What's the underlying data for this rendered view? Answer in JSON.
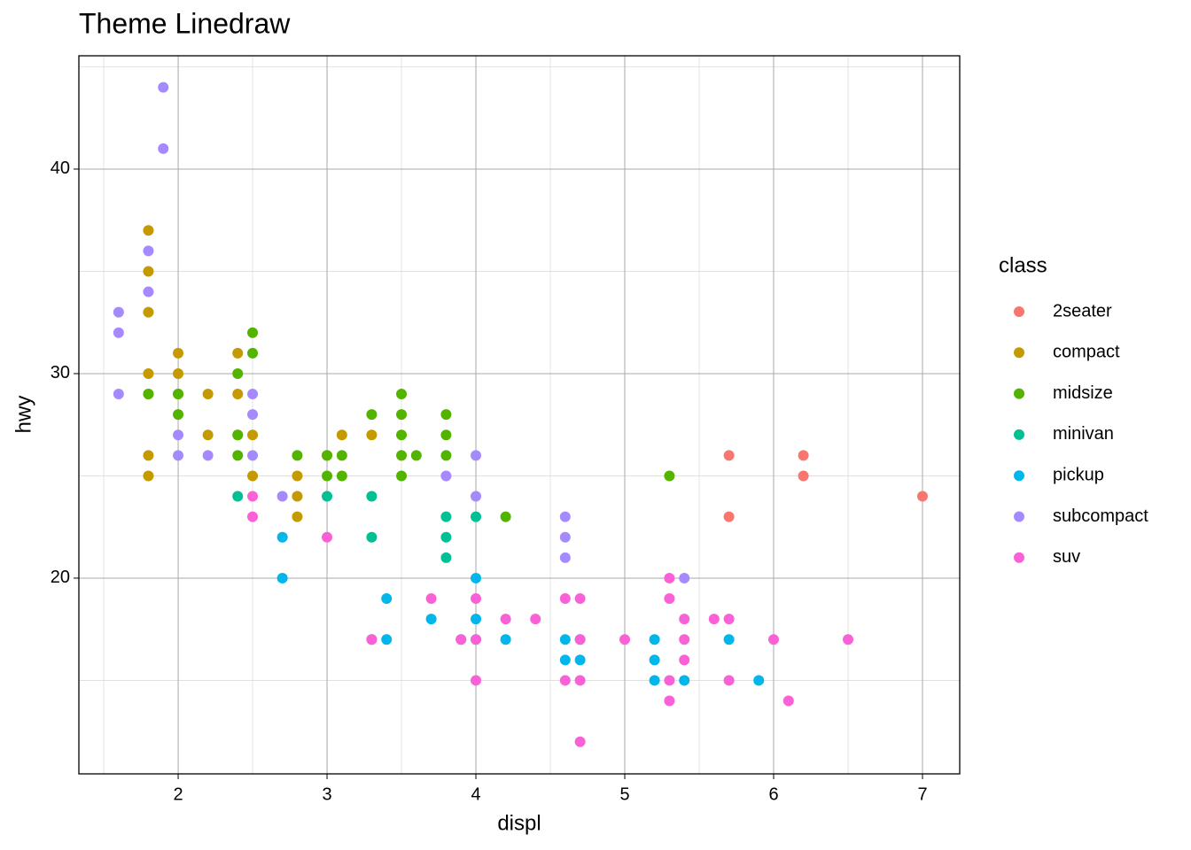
{
  "chart_data": {
    "type": "scatter",
    "title": "Theme Linedraw",
    "x_label": "displ",
    "y_label": "hwy",
    "legend_title": "class",
    "xlim": [
      1.333,
      7.25
    ],
    "ylim": [
      10.43,
      45.54
    ],
    "xticks": [
      2,
      3,
      4,
      5,
      6,
      7
    ],
    "yticks": [
      20,
      30,
      40
    ],
    "x_minor_ticks": [
      1.5,
      2.5,
      3.5,
      4.5,
      5.5,
      6.5
    ],
    "y_minor_ticks": [
      15,
      25,
      35,
      45
    ],
    "grid": true,
    "series": [
      {
        "name": "2seater",
        "color": "#F8766D",
        "x": [
          5.7,
          5.7,
          6.2,
          6.2,
          7.0
        ],
        "values": [
          26,
          23,
          26,
          25,
          24
        ]
      },
      {
        "name": "compact",
        "color": "#C49A00",
        "x": [
          1.8,
          1.8,
          1.8,
          1.8,
          1.8,
          1.8,
          1.8,
          2.0,
          2.0,
          2.0,
          2.2,
          2.2,
          2.4,
          2.4,
          2.4,
          2.5,
          2.5,
          2.8,
          2.8,
          2.8,
          3.0,
          3.1,
          3.3
        ],
        "values": [
          37,
          35,
          33,
          30,
          29,
          26,
          25,
          31,
          30,
          29,
          29,
          27,
          31,
          29,
          27,
          27,
          25,
          25,
          24,
          23,
          26,
          27,
          27
        ]
      },
      {
        "name": "midsize",
        "color": "#53B400",
        "x": [
          1.8,
          2.0,
          2.0,
          2.4,
          2.4,
          2.4,
          2.5,
          2.5,
          2.8,
          3.0,
          3.0,
          3.1,
          3.1,
          3.3,
          3.5,
          3.5,
          3.5,
          3.5,
          3.5,
          3.6,
          3.8,
          3.8,
          3.8,
          4.2,
          5.3
        ],
        "values": [
          29,
          29,
          28,
          30,
          27,
          26,
          32,
          31,
          26,
          26,
          25,
          26,
          25,
          28,
          29,
          28,
          27,
          26,
          25,
          26,
          28,
          27,
          26,
          23,
          25
        ]
      },
      {
        "name": "minivan",
        "color": "#00C094",
        "x": [
          2.4,
          3.0,
          3.3,
          3.3,
          3.3,
          3.8,
          3.8,
          3.8,
          4.0
        ],
        "values": [
          24,
          24,
          24,
          22,
          17,
          23,
          22,
          21,
          23
        ]
      },
      {
        "name": "pickup",
        "color": "#00B6EB",
        "x": [
          2.7,
          2.7,
          3.4,
          3.4,
          3.7,
          3.9,
          4.0,
          4.0,
          4.0,
          4.2,
          4.6,
          4.6,
          4.7,
          4.7,
          5.2,
          5.2,
          5.2,
          5.4,
          5.7,
          5.9
        ],
        "values": [
          22,
          20,
          19,
          17,
          18,
          17,
          20,
          18,
          17,
          17,
          17,
          16,
          17,
          16,
          17,
          16,
          15,
          15,
          17,
          15
        ]
      },
      {
        "name": "subcompact",
        "color": "#A58AFF",
        "x": [
          1.6,
          1.6,
          1.6,
          1.8,
          1.8,
          1.9,
          1.9,
          2.0,
          2.0,
          2.2,
          2.5,
          2.5,
          2.5,
          2.7,
          3.8,
          4.0,
          4.0,
          4.6,
          4.6,
          4.6,
          5.4
        ],
        "values": [
          33,
          32,
          29,
          36,
          34,
          44,
          41,
          27,
          26,
          26,
          29,
          28,
          26,
          24,
          25,
          26,
          24,
          23,
          22,
          21,
          20
        ]
      },
      {
        "name": "suv",
        "color": "#FB61D7",
        "x": [
          2.5,
          2.5,
          3.0,
          3.3,
          3.7,
          3.9,
          4.0,
          4.0,
          4.0,
          4.2,
          4.4,
          4.6,
          4.6,
          4.7,
          4.7,
          4.7,
          4.7,
          5.0,
          5.3,
          5.3,
          5.3,
          5.3,
          5.4,
          5.4,
          5.4,
          5.6,
          5.7,
          5.7,
          6.0,
          6.1,
          6.5
        ],
        "values": [
          24,
          23,
          22,
          17,
          19,
          17,
          19,
          17,
          15,
          18,
          18,
          19,
          15,
          19,
          17,
          15,
          12,
          17,
          20,
          19,
          15,
          14,
          18,
          17,
          16,
          18,
          18,
          15,
          17,
          14,
          17
        ]
      }
    ]
  }
}
